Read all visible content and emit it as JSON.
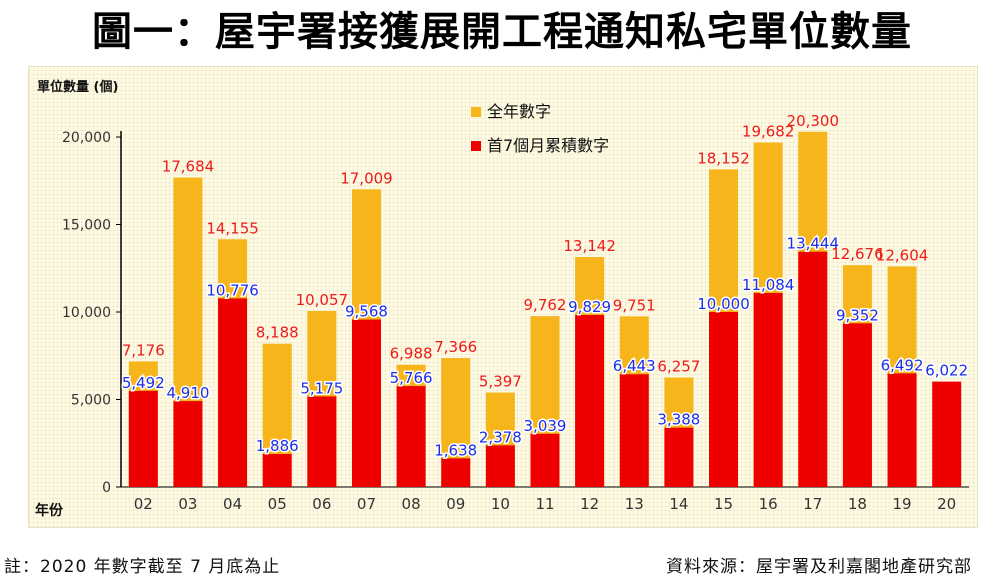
{
  "title": "圖一：屋宇署接獲展開工程通知私宅單位數量",
  "footnote": "註：2020 年數字截至 7 月底為止",
  "source": "資料來源：屋宇署及利嘉閣地產研究部",
  "colors": {
    "full_year": "#f5b51b",
    "first_seven_months": "#ee0000",
    "full_year_label": "#ee1a1a",
    "first_seven_label": "#1a2ee8"
  },
  "chart_data": {
    "type": "bar",
    "stacked": "overlay",
    "ylabel": "單位數量 (個)",
    "xlabel": "年份",
    "ylim": [
      0,
      20000
    ],
    "yticks": [
      "0",
      "5,000",
      "10,000",
      "15,000",
      "20,000"
    ],
    "ytick_values": [
      0,
      5000,
      10000,
      15000,
      20000
    ],
    "categories": [
      "02",
      "03",
      "04",
      "05",
      "06",
      "07",
      "08",
      "09",
      "10",
      "11",
      "12",
      "13",
      "14",
      "15",
      "16",
      "17",
      "18",
      "19",
      "20"
    ],
    "series": [
      {
        "name": "全年數字",
        "values": [
          7176,
          17684,
          14155,
          8188,
          10057,
          17009,
          6988,
          7366,
          5397,
          9762,
          13142,
          9751,
          6257,
          18152,
          19682,
          20300,
          12676,
          12604,
          null
        ],
        "labels": [
          "7,176",
          "17,684",
          "14,155",
          "8,188",
          "10,057",
          "17,009",
          "6,988",
          "7,366",
          "5,397",
          "9,762",
          "13,142",
          "9,751",
          "6,257",
          "18,152",
          "19,682",
          "20,300",
          "12,676",
          "12,604",
          ""
        ]
      },
      {
        "name": "首7個月累積數字",
        "values": [
          5492,
          4910,
          10776,
          1886,
          5175,
          9568,
          5766,
          1638,
          2378,
          3039,
          9829,
          6443,
          3388,
          10000,
          11084,
          13444,
          9352,
          6492,
          6022
        ],
        "labels": [
          "5,492",
          "4,910",
          "10,776",
          "1,886",
          "5,175",
          "9,568",
          "5,766",
          "1,638",
          "2,378",
          "3,039",
          "9,829",
          "6,443",
          "3,388",
          "10,000",
          "11,084",
          "13,444",
          "9,352",
          "6,492",
          "6,022"
        ]
      }
    ],
    "grid": false,
    "legend": "top-left"
  }
}
